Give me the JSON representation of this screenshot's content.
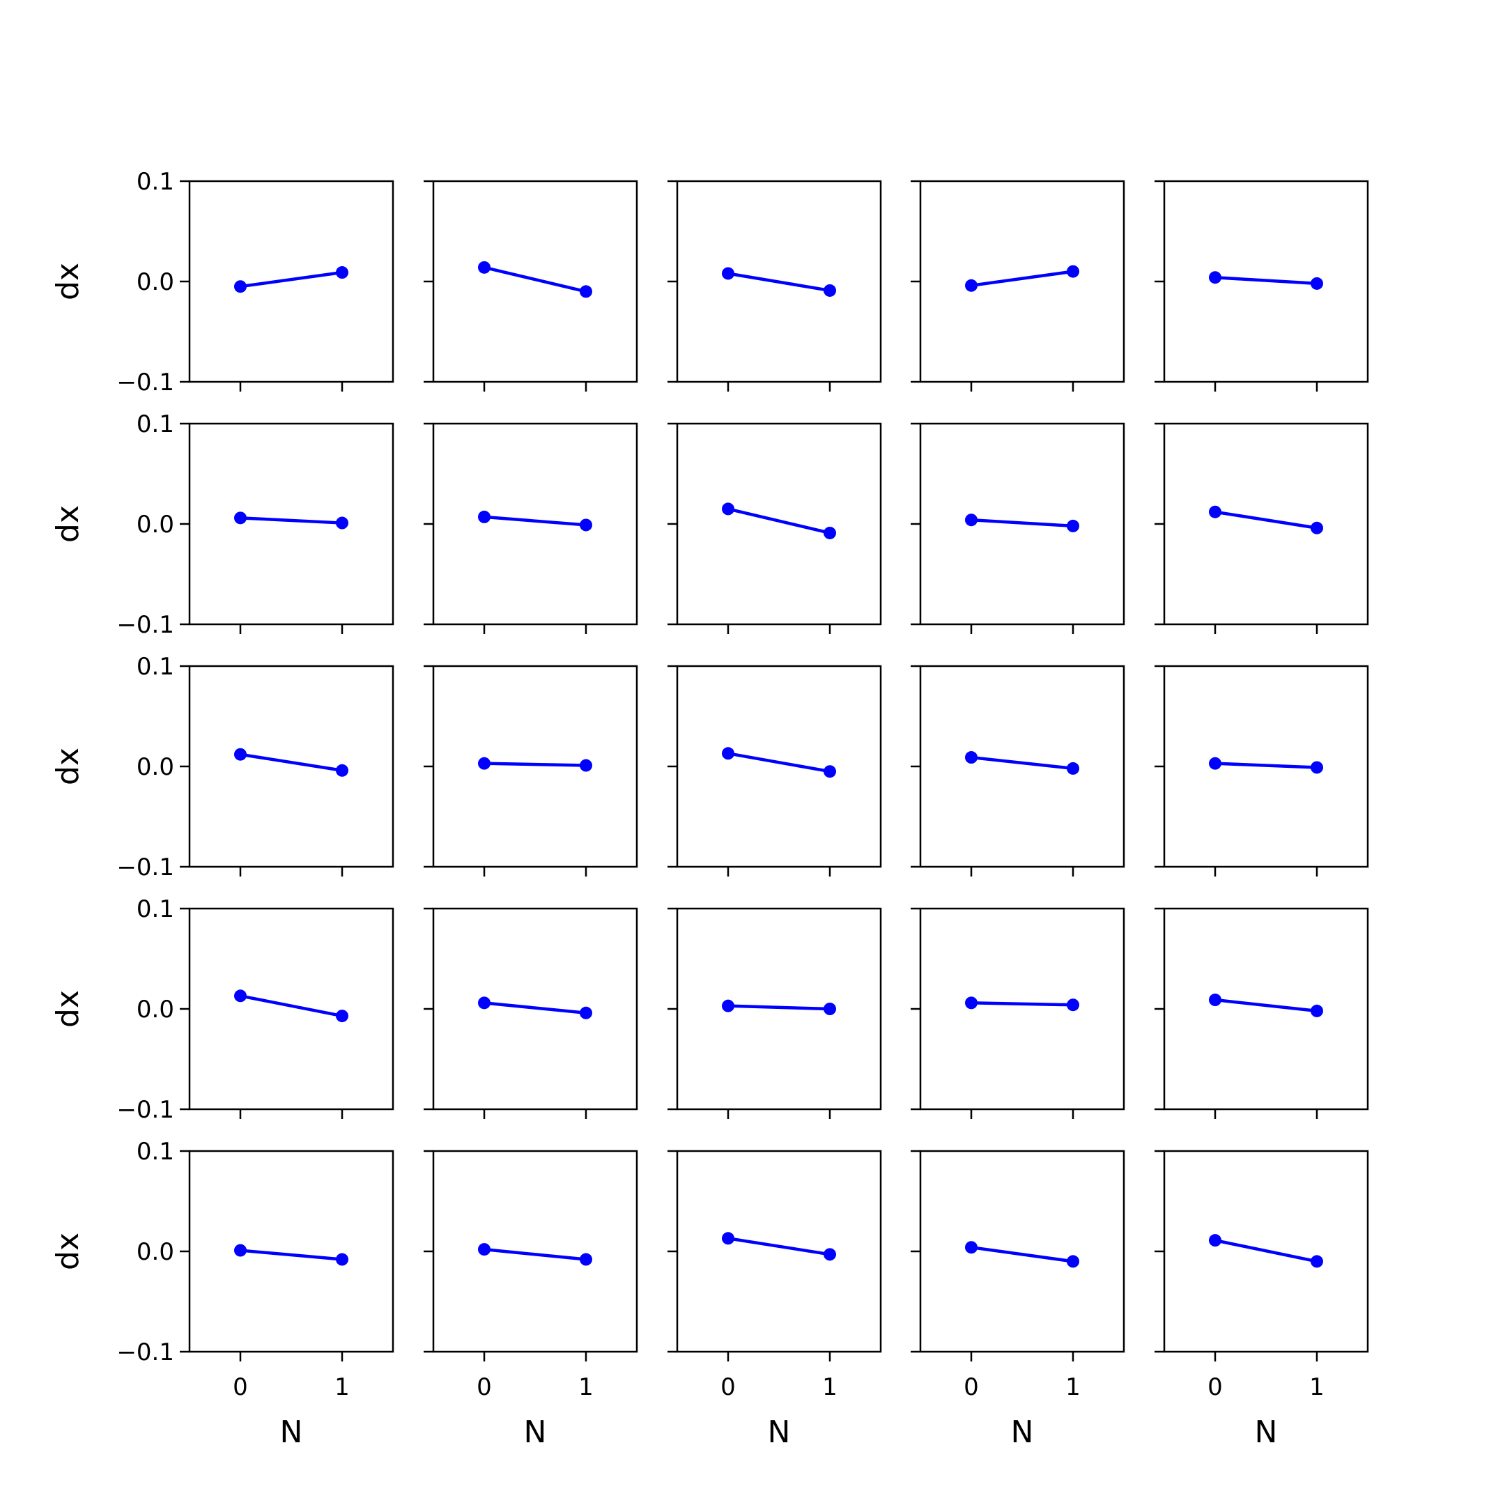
{
  "chart_data": {
    "type": "line",
    "layout": "5x5 small multiples",
    "xlabel": "N",
    "ylabel": "dx",
    "xlim": [
      -0.5,
      1.5
    ],
    "ylim": [
      -0.1,
      0.1
    ],
    "xticks": [
      0,
      1
    ],
    "xtick_labels": [
      "0",
      "1"
    ],
    "yticks": [
      0.1,
      0.0,
      -0.1
    ],
    "ytick_labels": [
      "0.1",
      "0.0",
      "−0.1"
    ],
    "grid": false,
    "line_color": "#0000ff",
    "marker": "circle",
    "x": [
      0,
      1
    ],
    "panels": [
      [
        -0.005,
        0.009
      ],
      [
        0.014,
        -0.01
      ],
      [
        0.008,
        -0.009
      ],
      [
        -0.004,
        0.01
      ],
      [
        0.004,
        -0.002
      ],
      [
        0.006,
        0.001
      ],
      [
        0.007,
        -0.001
      ],
      [
        0.015,
        -0.009
      ],
      [
        0.004,
        -0.002
      ],
      [
        0.012,
        -0.004
      ],
      [
        0.012,
        -0.004
      ],
      [
        0.003,
        0.001
      ],
      [
        0.013,
        -0.005
      ],
      [
        0.009,
        -0.002
      ],
      [
        0.003,
        -0.001
      ],
      [
        0.013,
        -0.007
      ],
      [
        0.006,
        -0.004
      ],
      [
        0.003,
        0.0
      ],
      [
        0.006,
        0.004
      ],
      [
        0.009,
        -0.002
      ],
      [
        0.001,
        -0.008
      ],
      [
        0.002,
        -0.008
      ],
      [
        0.013,
        -0.003
      ],
      [
        0.004,
        -0.01
      ],
      [
        0.011,
        -0.01
      ]
    ]
  }
}
